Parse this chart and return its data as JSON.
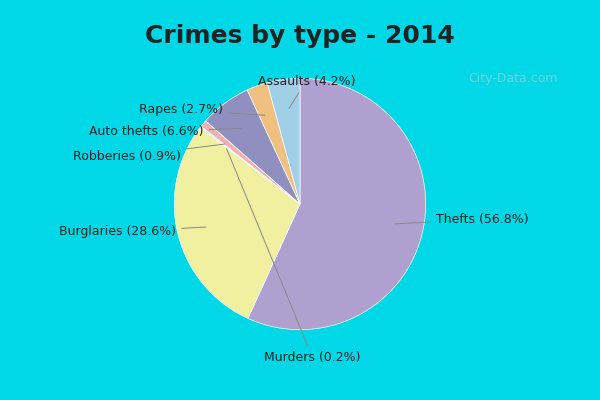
{
  "title": "Crimes by type - 2014",
  "slices": [
    {
      "label": "Thefts",
      "pct": 56.8,
      "color": "#b0a0d0"
    },
    {
      "label": "Burglaries",
      "pct": 28.6,
      "color": "#f0f0a0"
    },
    {
      "label": "Murders",
      "pct": 0.2,
      "color": "#d0e8d0"
    },
    {
      "label": "Robberies",
      "pct": 0.9,
      "color": "#f0b0b0"
    },
    {
      "label": "Auto thefts",
      "pct": 6.6,
      "color": "#9090c0"
    },
    {
      "label": "Rapes",
      "pct": 2.7,
      "color": "#f0c080"
    },
    {
      "label": "Assaults",
      "pct": 4.2,
      "color": "#a0d0e8"
    }
  ],
  "background_color": "#c8ead8",
  "outer_background": "#00d8e8",
  "title_fontsize": 18,
  "label_fontsize": 9,
  "watermark": "City-Data.com"
}
